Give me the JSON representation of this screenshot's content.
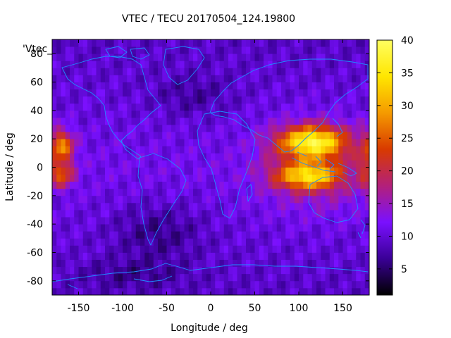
{
  "chart_data": {
    "type": "heatmap",
    "title": "VTEC / TECU 20170504_124.19800",
    "xlabel": "Longitude / deg",
    "ylabel": "Latitude / deg",
    "key_label": "'Vtec_",
    "xlim": [
      -180,
      180
    ],
    "ylim": [
      -90,
      90
    ],
    "x_ticks": [
      -150,
      -100,
      -50,
      0,
      50,
      100,
      150
    ],
    "y_ticks": [
      -80,
      -60,
      -40,
      -20,
      0,
      20,
      40,
      60,
      80
    ],
    "colorbar": {
      "range": [
        1,
        40
      ],
      "ticks": [
        5,
        10,
        15,
        20,
        25,
        30,
        35,
        40
      ],
      "colormap": [
        "#000000",
        "#3a0096",
        "#7a10ff",
        "#b3207a",
        "#d83a00",
        "#f59a00",
        "#ffe600",
        "#ffff60"
      ]
    },
    "grid": false,
    "field_description": "Global VTEC map on a coarse lon/lat grid with coastlines overlaid; enhanced ionization crests near +/-15 deg latitude over Asia-Australia (peak about 38 TECU) and over the far eastern Pacific near the date line.",
    "coastline_color": "#1e8cff"
  }
}
